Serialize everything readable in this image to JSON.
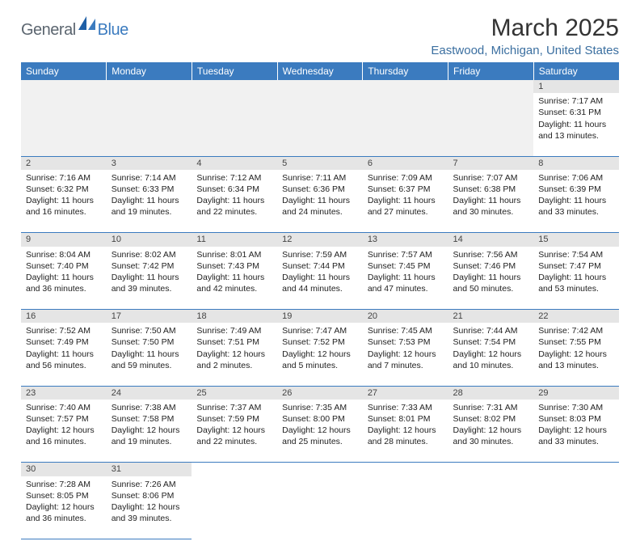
{
  "logo": {
    "part1": "General",
    "part2": "Blue",
    "mark_color": "#1f5fa6"
  },
  "title": "March 2025",
  "location": "Eastwood, Michigan, United States",
  "colors": {
    "header_bg": "#3b7bbf",
    "header_text": "#ffffff",
    "daynum_bg": "#e5e5e5",
    "blank_bg": "#f1f1f1",
    "row_divider": "#3b7bbf",
    "body_text": "#222222",
    "location_text": "#3b6fa0"
  },
  "day_headers": [
    "Sunday",
    "Monday",
    "Tuesday",
    "Wednesday",
    "Thursday",
    "Friday",
    "Saturday"
  ],
  "weeks": [
    {
      "nums": [
        null,
        null,
        null,
        null,
        null,
        null,
        "1"
      ],
      "cells": [
        null,
        null,
        null,
        null,
        null,
        null,
        {
          "sunrise": "7:17 AM",
          "sunset": "6:31 PM",
          "daylight": "11 hours and 13 minutes."
        }
      ]
    },
    {
      "nums": [
        "2",
        "3",
        "4",
        "5",
        "6",
        "7",
        "8"
      ],
      "cells": [
        {
          "sunrise": "7:16 AM",
          "sunset": "6:32 PM",
          "daylight": "11 hours and 16 minutes."
        },
        {
          "sunrise": "7:14 AM",
          "sunset": "6:33 PM",
          "daylight": "11 hours and 19 minutes."
        },
        {
          "sunrise": "7:12 AM",
          "sunset": "6:34 PM",
          "daylight": "11 hours and 22 minutes."
        },
        {
          "sunrise": "7:11 AM",
          "sunset": "6:36 PM",
          "daylight": "11 hours and 24 minutes."
        },
        {
          "sunrise": "7:09 AM",
          "sunset": "6:37 PM",
          "daylight": "11 hours and 27 minutes."
        },
        {
          "sunrise": "7:07 AM",
          "sunset": "6:38 PM",
          "daylight": "11 hours and 30 minutes."
        },
        {
          "sunrise": "7:06 AM",
          "sunset": "6:39 PM",
          "daylight": "11 hours and 33 minutes."
        }
      ]
    },
    {
      "nums": [
        "9",
        "10",
        "11",
        "12",
        "13",
        "14",
        "15"
      ],
      "cells": [
        {
          "sunrise": "8:04 AM",
          "sunset": "7:40 PM",
          "daylight": "11 hours and 36 minutes."
        },
        {
          "sunrise": "8:02 AM",
          "sunset": "7:42 PM",
          "daylight": "11 hours and 39 minutes."
        },
        {
          "sunrise": "8:01 AM",
          "sunset": "7:43 PM",
          "daylight": "11 hours and 42 minutes."
        },
        {
          "sunrise": "7:59 AM",
          "sunset": "7:44 PM",
          "daylight": "11 hours and 44 minutes."
        },
        {
          "sunrise": "7:57 AM",
          "sunset": "7:45 PM",
          "daylight": "11 hours and 47 minutes."
        },
        {
          "sunrise": "7:56 AM",
          "sunset": "7:46 PM",
          "daylight": "11 hours and 50 minutes."
        },
        {
          "sunrise": "7:54 AM",
          "sunset": "7:47 PM",
          "daylight": "11 hours and 53 minutes."
        }
      ]
    },
    {
      "nums": [
        "16",
        "17",
        "18",
        "19",
        "20",
        "21",
        "22"
      ],
      "cells": [
        {
          "sunrise": "7:52 AM",
          "sunset": "7:49 PM",
          "daylight": "11 hours and 56 minutes."
        },
        {
          "sunrise": "7:50 AM",
          "sunset": "7:50 PM",
          "daylight": "11 hours and 59 minutes."
        },
        {
          "sunrise": "7:49 AM",
          "sunset": "7:51 PM",
          "daylight": "12 hours and 2 minutes."
        },
        {
          "sunrise": "7:47 AM",
          "sunset": "7:52 PM",
          "daylight": "12 hours and 5 minutes."
        },
        {
          "sunrise": "7:45 AM",
          "sunset": "7:53 PM",
          "daylight": "12 hours and 7 minutes."
        },
        {
          "sunrise": "7:44 AM",
          "sunset": "7:54 PM",
          "daylight": "12 hours and 10 minutes."
        },
        {
          "sunrise": "7:42 AM",
          "sunset": "7:55 PM",
          "daylight": "12 hours and 13 minutes."
        }
      ]
    },
    {
      "nums": [
        "23",
        "24",
        "25",
        "26",
        "27",
        "28",
        "29"
      ],
      "cells": [
        {
          "sunrise": "7:40 AM",
          "sunset": "7:57 PM",
          "daylight": "12 hours and 16 minutes."
        },
        {
          "sunrise": "7:38 AM",
          "sunset": "7:58 PM",
          "daylight": "12 hours and 19 minutes."
        },
        {
          "sunrise": "7:37 AM",
          "sunset": "7:59 PM",
          "daylight": "12 hours and 22 minutes."
        },
        {
          "sunrise": "7:35 AM",
          "sunset": "8:00 PM",
          "daylight": "12 hours and 25 minutes."
        },
        {
          "sunrise": "7:33 AM",
          "sunset": "8:01 PM",
          "daylight": "12 hours and 28 minutes."
        },
        {
          "sunrise": "7:31 AM",
          "sunset": "8:02 PM",
          "daylight": "12 hours and 30 minutes."
        },
        {
          "sunrise": "7:30 AM",
          "sunset": "8:03 PM",
          "daylight": "12 hours and 33 minutes."
        }
      ]
    },
    {
      "nums": [
        "30",
        "31",
        null,
        null,
        null,
        null,
        null
      ],
      "cells": [
        {
          "sunrise": "7:28 AM",
          "sunset": "8:05 PM",
          "daylight": "12 hours and 36 minutes."
        },
        {
          "sunrise": "7:26 AM",
          "sunset": "8:06 PM",
          "daylight": "12 hours and 39 minutes."
        },
        null,
        null,
        null,
        null,
        null
      ]
    }
  ],
  "labels": {
    "sunrise": "Sunrise:",
    "sunset": "Sunset:",
    "daylight": "Daylight:"
  }
}
